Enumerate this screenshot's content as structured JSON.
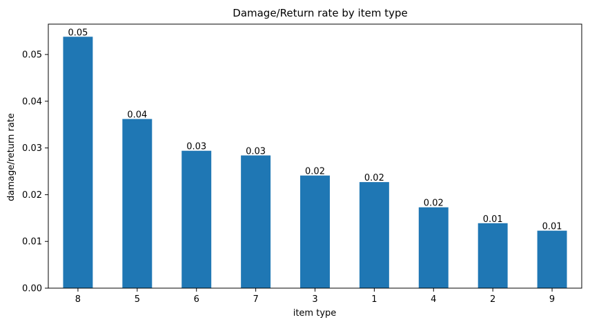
{
  "chart_data": {
    "type": "bar",
    "title": "Damage/Return rate by item type",
    "xlabel": "item type",
    "ylabel": "damage/return rate",
    "categories": [
      "8",
      "5",
      "6",
      "7",
      "3",
      "1",
      "4",
      "2",
      "9"
    ],
    "values": [
      0.0538,
      0.0362,
      0.0294,
      0.0284,
      0.0241,
      0.0227,
      0.0173,
      0.0139,
      0.0123
    ],
    "data_labels": [
      "0.05",
      "0.04",
      "0.03",
      "0.03",
      "0.02",
      "0.02",
      "0.02",
      "0.01",
      "0.01"
    ],
    "ylim": [
      0,
      0.0565
    ],
    "yticks": [
      0.0,
      0.01,
      0.02,
      0.03,
      0.04,
      0.05
    ],
    "ytick_labels": [
      "0.00",
      "0.01",
      "0.02",
      "0.03",
      "0.04",
      "0.05"
    ],
    "bar_color": "#1f77b4",
    "grid": false,
    "legend": "none"
  }
}
